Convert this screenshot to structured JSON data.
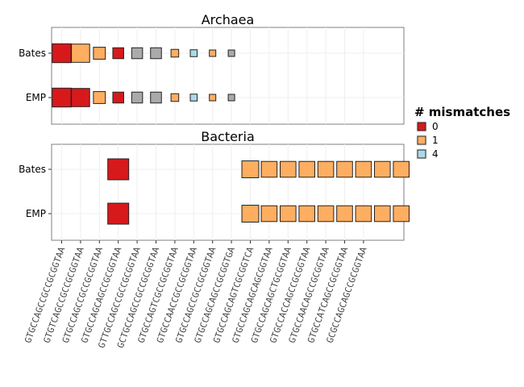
{
  "chart_data": {
    "type": "scatter",
    "panels": [
      "Archaea",
      "Bacteria"
    ],
    "datasets": [
      "Bates",
      "EMP"
    ],
    "x": [
      "GTGCCAGCCGCCGCGGTAA",
      "GTGTCAGCCGCCGCGGTAA",
      "GTGCCAGCCGCCGCGGTAA",
      "GTGCCAGCAGCCGCGGTAA",
      "GTTGCCAGCCGCCGCGGTAA",
      "GCTGCCAGCCGCCGCGGTAA",
      "GTGCCAGTCGCCGCGGTAA",
      "GTGCCAACCGCCGCGGTAA",
      "GTGCCAGCCGCCGCGGTAA",
      "GTGCCAGCAGCCGCGGTGA",
      "GTGCCAGCAGTCGCGGTCA",
      "GTGCCAGCAGCAGCGGTAA",
      "GTGCCAGCAGCTGCGGTAA",
      "GTGCCACCAGCCGCGGTAA",
      "GTGCCAACAGCCGCGGTAA",
      "GTGCCATCAGCCGCGGTAA",
      "GCGCCAGCAGCCGCGGTAA"
    ],
    "legend": {
      "title": "# mismatches",
      "entries": [
        {
          "label": "0",
          "color": "#d7191c"
        },
        {
          "label": "1",
          "color": "#fdae61"
        },
        {
          "label": "4",
          "color": "#abd9e9"
        }
      ],
      "na_color": "#aaaaaa",
      "position": "right"
    },
    "points": [
      {
        "panel": "Archaea",
        "dataset": "Bates",
        "x": 1,
        "mismatches": "0",
        "size": 0.3
      },
      {
        "panel": "Archaea",
        "dataset": "Bates",
        "x": 2,
        "mismatches": "1",
        "size": 0.28
      },
      {
        "panel": "Archaea",
        "dataset": "Bates",
        "x": 3,
        "mismatches": "1",
        "size": 0.12
      },
      {
        "panel": "Archaea",
        "dataset": "Bates",
        "x": 4,
        "mismatches": "0",
        "size": 0.1
      },
      {
        "panel": "Archaea",
        "dataset": "Bates",
        "x": 5,
        "mismatches": null,
        "size": 0.1
      },
      {
        "panel": "Archaea",
        "dataset": "Bates",
        "x": 6,
        "mismatches": null,
        "size": 0.1
      },
      {
        "panel": "Archaea",
        "dataset": "Bates",
        "x": 7,
        "mismatches": "1",
        "size": 0.05
      },
      {
        "panel": "Archaea",
        "dataset": "Bates",
        "x": 8,
        "mismatches": "4",
        "size": 0.04
      },
      {
        "panel": "Archaea",
        "dataset": "Bates",
        "x": 9,
        "mismatches": "1",
        "size": 0.035
      },
      {
        "panel": "Archaea",
        "dataset": "Bates",
        "x": 10,
        "mismatches": null,
        "size": 0.035
      },
      {
        "panel": "Archaea",
        "dataset": "EMP",
        "x": 1,
        "mismatches": "0",
        "size": 0.3
      },
      {
        "panel": "Archaea",
        "dataset": "EMP",
        "x": 2,
        "mismatches": "0",
        "size": 0.28
      },
      {
        "panel": "Archaea",
        "dataset": "EMP",
        "x": 3,
        "mismatches": "1",
        "size": 0.12
      },
      {
        "panel": "Archaea",
        "dataset": "EMP",
        "x": 4,
        "mismatches": "0",
        "size": 0.1
      },
      {
        "panel": "Archaea",
        "dataset": "EMP",
        "x": 5,
        "mismatches": null,
        "size": 0.1
      },
      {
        "panel": "Archaea",
        "dataset": "EMP",
        "x": 6,
        "mismatches": null,
        "size": 0.1
      },
      {
        "panel": "Archaea",
        "dataset": "EMP",
        "x": 7,
        "mismatches": "1",
        "size": 0.05
      },
      {
        "panel": "Archaea",
        "dataset": "EMP",
        "x": 8,
        "mismatches": "4",
        "size": 0.04
      },
      {
        "panel": "Archaea",
        "dataset": "EMP",
        "x": 9,
        "mismatches": "1",
        "size": 0.035
      },
      {
        "panel": "Archaea",
        "dataset": "EMP",
        "x": 10,
        "mismatches": null,
        "size": 0.035
      },
      {
        "panel": "Bacteria",
        "dataset": "Bates",
        "x": 4,
        "mismatches": "0",
        "size": 0.37
      },
      {
        "panel": "Bacteria",
        "dataset": "Bates",
        "x": 11,
        "mismatches": "1",
        "size": 0.24
      },
      {
        "panel": "Bacteria",
        "dataset": "Bates",
        "x": 12,
        "mismatches": "1",
        "size": 0.21
      },
      {
        "panel": "Bacteria",
        "dataset": "Bates",
        "x": 13,
        "mismatches": "1",
        "size": 0.21
      },
      {
        "panel": "Bacteria",
        "dataset": "Bates",
        "x": 14,
        "mismatches": "1",
        "size": 0.21
      },
      {
        "panel": "Bacteria",
        "dataset": "Bates",
        "x": 15,
        "mismatches": "1",
        "size": 0.21
      },
      {
        "panel": "Bacteria",
        "dataset": "Bates",
        "x": 16,
        "mismatches": "1",
        "size": 0.21
      },
      {
        "panel": "Bacteria",
        "dataset": "Bates",
        "x": 17,
        "mismatches": "1",
        "size": 0.21
      },
      {
        "panel": "Bacteria",
        "dataset": "Bates",
        "x": 18,
        "mismatches": "1",
        "size": 0.21
      },
      {
        "panel": "Bacteria",
        "dataset": "Bates",
        "x": 19,
        "mismatches": "1",
        "size": 0.21
      },
      {
        "panel": "Bacteria",
        "dataset": "EMP",
        "x": 4,
        "mismatches": "0",
        "size": 0.37
      },
      {
        "panel": "Bacteria",
        "dataset": "EMP",
        "x": 11,
        "mismatches": "1",
        "size": 0.24
      },
      {
        "panel": "Bacteria",
        "dataset": "EMP",
        "x": 12,
        "mismatches": "1",
        "size": 0.21
      },
      {
        "panel": "Bacteria",
        "dataset": "EMP",
        "x": 13,
        "mismatches": "1",
        "size": 0.21
      },
      {
        "panel": "Bacteria",
        "dataset": "EMP",
        "x": 14,
        "mismatches": "1",
        "size": 0.21
      },
      {
        "panel": "Bacteria",
        "dataset": "EMP",
        "x": 15,
        "mismatches": "1",
        "size": 0.21
      },
      {
        "panel": "Bacteria",
        "dataset": "EMP",
        "x": 16,
        "mismatches": "1",
        "size": 0.21
      },
      {
        "panel": "Bacteria",
        "dataset": "EMP",
        "x": 17,
        "mismatches": "1",
        "size": 0.21
      },
      {
        "panel": "Bacteria",
        "dataset": "EMP",
        "x": 18,
        "mismatches": "1",
        "size": 0.21
      },
      {
        "panel": "Bacteria",
        "dataset": "EMP",
        "x": 19,
        "mismatches": "1",
        "size": 0.21
      }
    ],
    "grid": true
  }
}
